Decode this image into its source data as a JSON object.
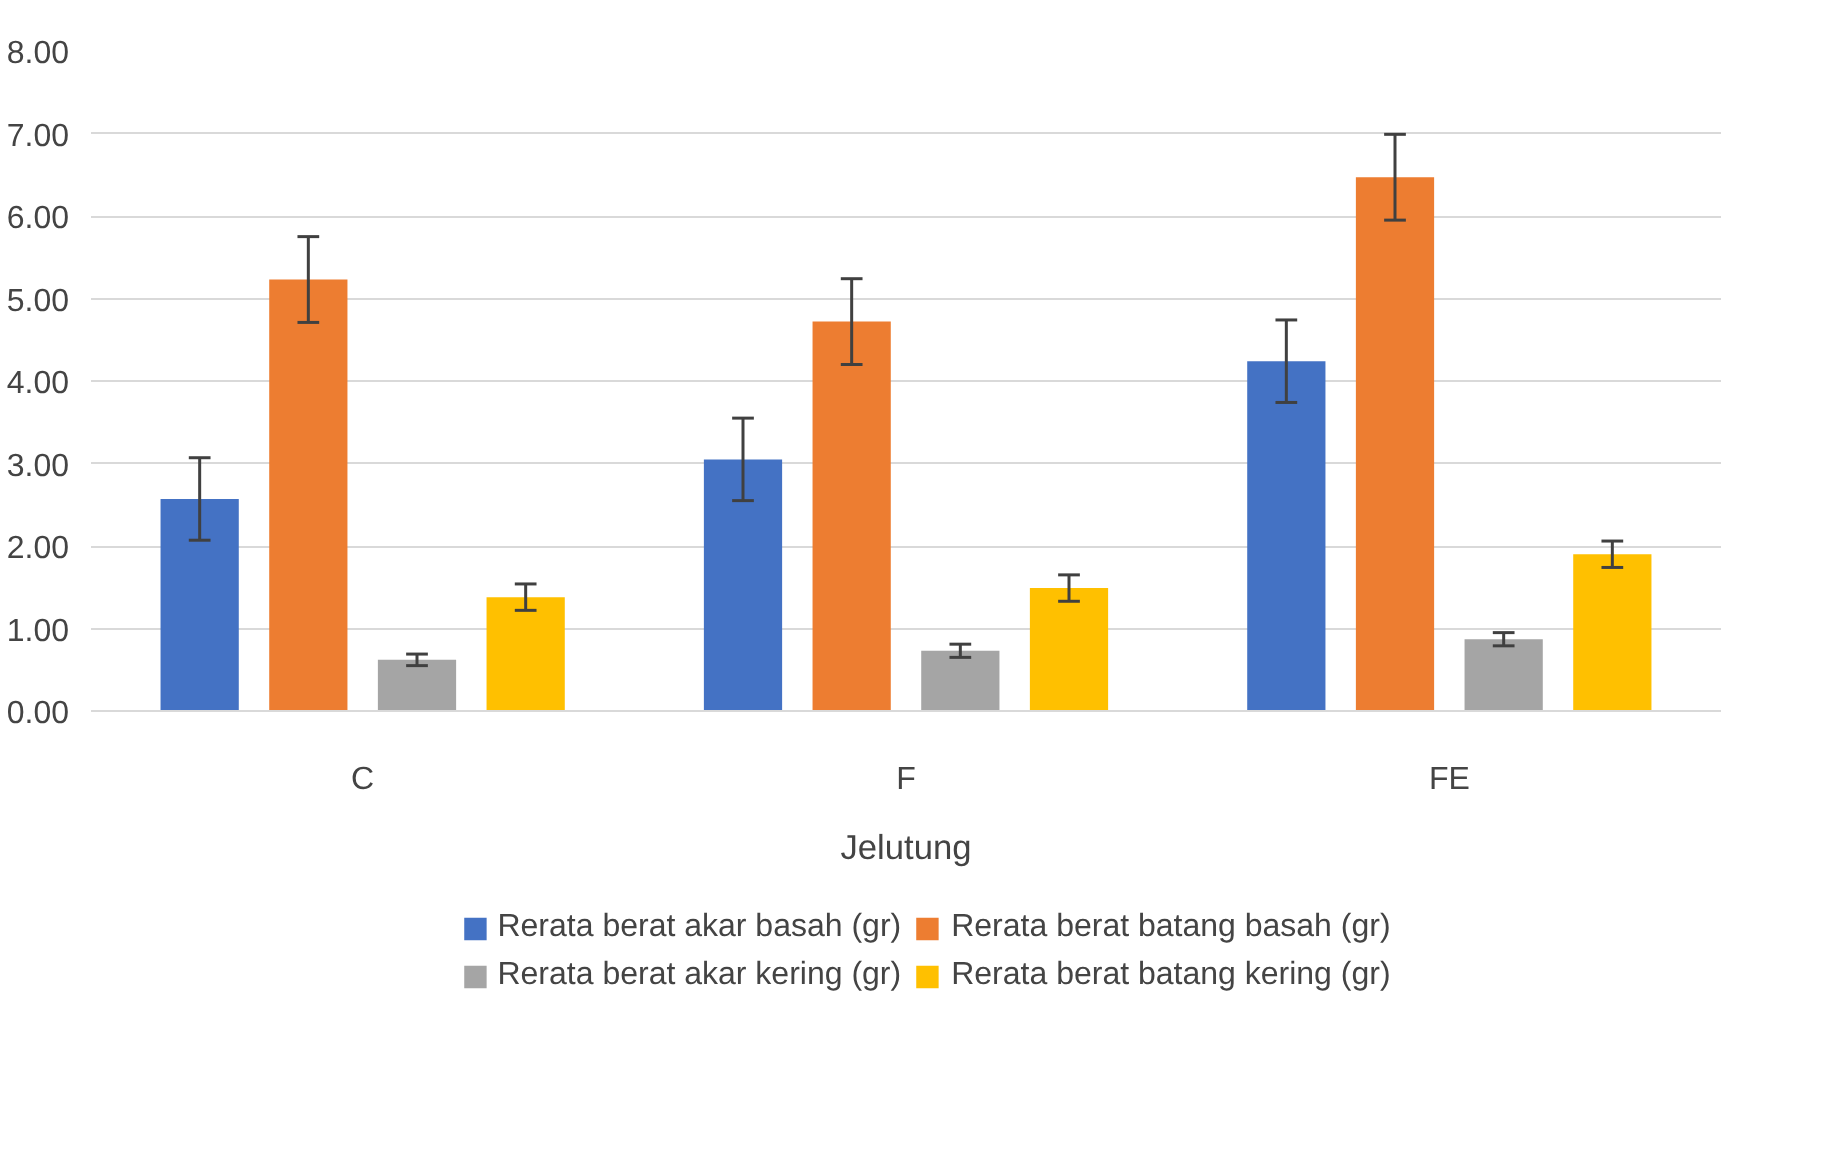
{
  "chart_data": {
    "type": "bar",
    "xlabel": "Jelutung",
    "categories": [
      "C",
      "F",
      "FE"
    ],
    "series": [
      {
        "name": "Rerata berat akar basah (gr)",
        "color": "#4472c4",
        "values": [
          2.57,
          3.05,
          4.24
        ],
        "errors": [
          0.5,
          0.5,
          0.5
        ]
      },
      {
        "name": "Rerata berat batang basah (gr)",
        "color": "#ed7d31",
        "values": [
          5.23,
          4.72,
          6.47
        ],
        "errors": [
          0.52,
          0.52,
          0.52
        ]
      },
      {
        "name": "Rerata berat akar kering (gr)",
        "color": "#a5a5a5",
        "values": [
          0.62,
          0.73,
          0.87
        ],
        "errors": [
          0.07,
          0.08,
          0.08
        ]
      },
      {
        "name": "Rerata berat batang kering (gr)",
        "color": "#ffc000",
        "values": [
          1.38,
          1.49,
          1.9
        ],
        "errors": [
          0.16,
          0.16,
          0.16
        ]
      }
    ],
    "ylim": [
      0,
      8
    ],
    "yticks": [
      {
        "value": 0,
        "label": "0.00"
      },
      {
        "value": 1,
        "label": "1.00"
      },
      {
        "value": 2,
        "label": "2.00"
      },
      {
        "value": 3,
        "label": "3.00"
      },
      {
        "value": 4,
        "label": "4.00"
      },
      {
        "value": 5,
        "label": "5.00"
      },
      {
        "value": 6,
        "label": "6.00"
      },
      {
        "value": 7,
        "label": "7.00"
      },
      {
        "value": 8,
        "label": "8.00"
      }
    ],
    "grid": "y",
    "legend": "bottom"
  }
}
